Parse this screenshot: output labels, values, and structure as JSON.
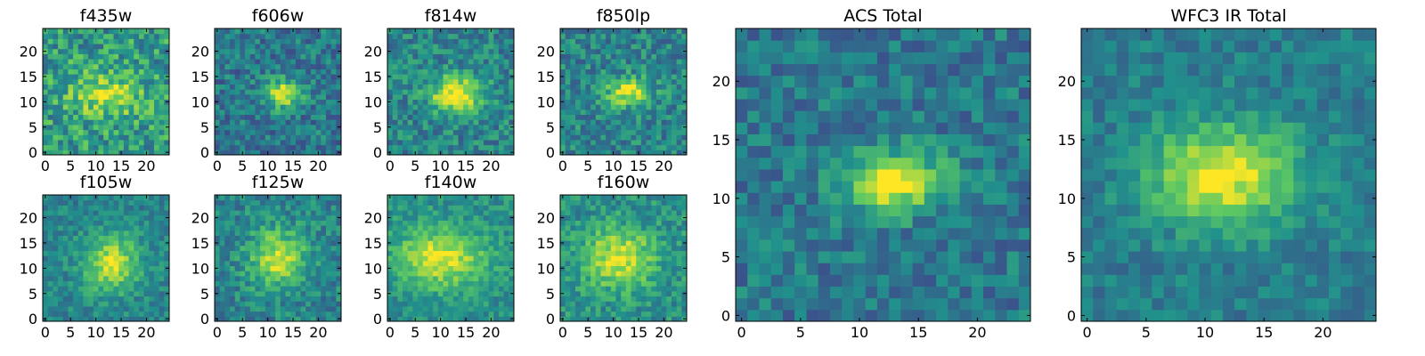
{
  "colormap": [
    "#440154",
    "#3b528b",
    "#21918c",
    "#5ec962",
    "#fde725"
  ],
  "frame_color": "#000000",
  "chart_data": [
    {
      "type": "heatmap",
      "id": "f435w",
      "title": "f435w",
      "grid": 25,
      "xlim": [
        -0.5,
        24.5
      ],
      "ylim": [
        -0.5,
        24.5
      ],
      "xticks": [
        0,
        5,
        10,
        15,
        20
      ],
      "yticks": [
        0,
        5,
        10,
        15,
        20
      ],
      "source": {
        "cx": 12,
        "cy": 11.5,
        "sx": 5,
        "sy": 3,
        "peak": 0.35,
        "base": 0.55,
        "noise": 0.45,
        "seed": 11
      }
    },
    {
      "type": "heatmap",
      "id": "f606w",
      "title": "f606w",
      "grid": 25,
      "xlim": [
        -0.5,
        24.5
      ],
      "ylim": [
        -0.5,
        24.5
      ],
      "xticks": [
        0,
        5,
        10,
        15,
        20
      ],
      "yticks": [
        0,
        5,
        10,
        15,
        20
      ],
      "source": {
        "cx": 13,
        "cy": 11.5,
        "sx": 2.5,
        "sy": 2,
        "peak": 0.55,
        "base": 0.4,
        "noise": 0.35,
        "seed": 22
      }
    },
    {
      "type": "heatmap",
      "id": "f814w",
      "title": "f814w",
      "grid": 25,
      "xlim": [
        -0.5,
        24.5
      ],
      "ylim": [
        -0.5,
        24.5
      ],
      "xticks": [
        0,
        5,
        10,
        15,
        20
      ],
      "yticks": [
        0,
        5,
        10,
        15,
        20
      ],
      "source": {
        "cx": 13,
        "cy": 11.5,
        "sx": 3.5,
        "sy": 2.5,
        "peak": 0.6,
        "base": 0.45,
        "noise": 0.35,
        "seed": 33
      }
    },
    {
      "type": "heatmap",
      "id": "f850lp",
      "title": "f850lp",
      "grid": 25,
      "xlim": [
        -0.5,
        24.5
      ],
      "ylim": [
        -0.5,
        24.5
      ],
      "xticks": [
        0,
        5,
        10,
        15,
        20
      ],
      "yticks": [
        0,
        5,
        10,
        15,
        20
      ],
      "source": {
        "cx": 13,
        "cy": 12,
        "sx": 3,
        "sy": 2,
        "peak": 0.5,
        "base": 0.45,
        "noise": 0.35,
        "seed": 44
      }
    },
    {
      "type": "heatmap",
      "id": "f105w",
      "title": "f105w",
      "grid": 25,
      "xlim": [
        -0.5,
        24.5
      ],
      "ylim": [
        -0.5,
        24.5
      ],
      "xticks": [
        0,
        5,
        10,
        15,
        20
      ],
      "yticks": [
        0,
        5,
        10,
        15,
        20
      ],
      "source": {
        "cx": 13,
        "cy": 11,
        "sx": 4,
        "sy": 4,
        "peak": 0.45,
        "base": 0.45,
        "noise": 0.25,
        "seed": 55
      }
    },
    {
      "type": "heatmap",
      "id": "f125w",
      "title": "f125w",
      "grid": 25,
      "xlim": [
        -0.5,
        24.5
      ],
      "ylim": [
        -0.5,
        24.5
      ],
      "xticks": [
        0,
        5,
        10,
        15,
        20
      ],
      "yticks": [
        0,
        5,
        10,
        15,
        20
      ],
      "source": {
        "cx": 12,
        "cy": 12,
        "sx": 4,
        "sy": 4,
        "peak": 0.45,
        "base": 0.45,
        "noise": 0.3,
        "seed": 66
      }
    },
    {
      "type": "heatmap",
      "id": "f140w",
      "title": "f140w",
      "grid": 25,
      "xlim": [
        -0.5,
        24.5
      ],
      "ylim": [
        -0.5,
        24.5
      ],
      "xticks": [
        0,
        5,
        10,
        15,
        20
      ],
      "yticks": [
        0,
        5,
        10,
        15,
        20
      ],
      "source": {
        "cx": 10,
        "cy": 12,
        "sx": 6,
        "sy": 4,
        "peak": 0.45,
        "base": 0.5,
        "noise": 0.25,
        "seed": 77
      }
    },
    {
      "type": "heatmap",
      "id": "f160w",
      "title": "f160w",
      "grid": 25,
      "xlim": [
        -0.5,
        24.5
      ],
      "ylim": [
        -0.5,
        24.5
      ],
      "xticks": [
        0,
        5,
        10,
        15,
        20
      ],
      "yticks": [
        0,
        5,
        10,
        15,
        20
      ],
      "source": {
        "cx": 11,
        "cy": 12,
        "sx": 5,
        "sy": 4,
        "peak": 0.45,
        "base": 0.5,
        "noise": 0.3,
        "seed": 88
      }
    },
    {
      "type": "heatmap",
      "id": "acs-total",
      "title": "ACS Total",
      "grid": 25,
      "xlim": [
        -0.5,
        24.5
      ],
      "ylim": [
        -0.5,
        24.5
      ],
      "xticks": [
        0,
        5,
        10,
        15,
        20
      ],
      "yticks": [
        0,
        5,
        10,
        15,
        20
      ],
      "source": {
        "cx": 13,
        "cy": 11.5,
        "sx": 3,
        "sy": 1.8,
        "peak": 0.6,
        "base": 0.4,
        "noise": 0.3,
        "seed": 99
      }
    },
    {
      "type": "heatmap",
      "id": "wfc3-ir-total",
      "title": "WFC3 IR Total",
      "grid": 25,
      "xlim": [
        -0.5,
        24.5
      ],
      "ylim": [
        -0.5,
        24.5
      ],
      "xticks": [
        0,
        5,
        10,
        15,
        20
      ],
      "yticks": [
        0,
        5,
        10,
        15,
        20
      ],
      "source": {
        "cx": 11.5,
        "cy": 12,
        "sx": 4.5,
        "sy": 3,
        "peak": 0.55,
        "base": 0.42,
        "noise": 0.22,
        "seed": 123
      }
    }
  ]
}
